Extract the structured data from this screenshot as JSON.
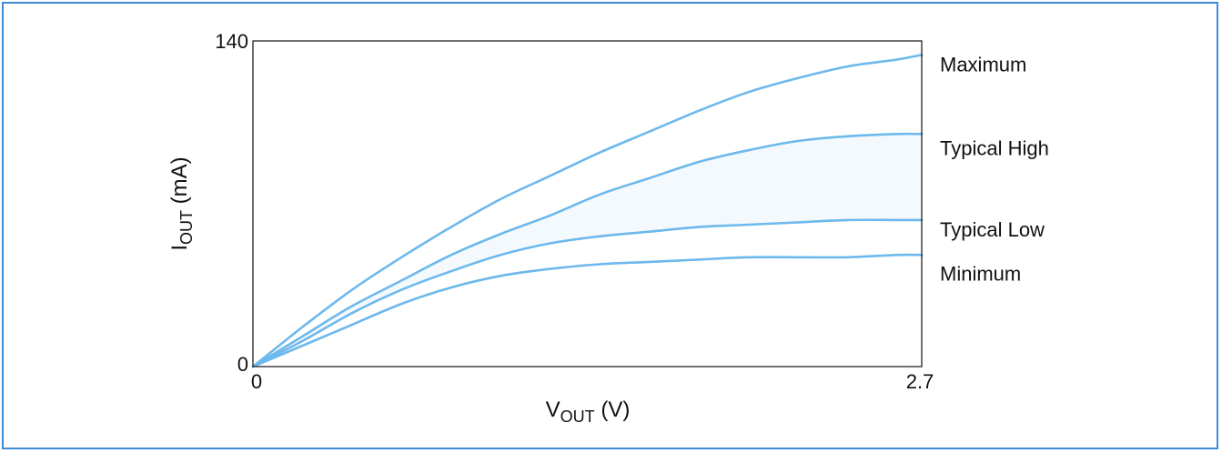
{
  "chart_data": {
    "type": "line",
    "title": "",
    "xlabel": {
      "main": "V",
      "sub": "OUT",
      "unit": " (V)"
    },
    "ylabel": {
      "main": "I",
      "sub": "OUT",
      "unit": " (mA)"
    },
    "xlim": [
      0,
      2.7
    ],
    "ylim": [
      0,
      140
    ],
    "x_ticks": [
      "0",
      "2.7"
    ],
    "y_ticks": [
      "0",
      "140"
    ],
    "grid": false,
    "legend": "right, inline at line ends",
    "line_color": "#6db8ec",
    "fill_color": "#f3f9fd",
    "shaded_band": [
      "Typical Low",
      "Typical High"
    ],
    "series": [
      {
        "name": "Maximum",
        "x": [
          0,
          0.2,
          0.4,
          0.6,
          0.8,
          1.0,
          1.2,
          1.4,
          1.6,
          1.8,
          2.0,
          2.2,
          2.4,
          2.6,
          2.7
        ],
        "y": [
          0,
          17,
          33,
          47,
          60,
          72,
          82,
          92,
          101,
          110,
          118,
          124,
          129,
          132,
          134
        ]
      },
      {
        "name": "Typical High",
        "x": [
          0,
          0.2,
          0.4,
          0.6,
          0.8,
          1.0,
          1.2,
          1.4,
          1.6,
          1.8,
          2.0,
          2.2,
          2.4,
          2.6,
          2.7
        ],
        "y": [
          0,
          13,
          26,
          37,
          48,
          57,
          65,
          74,
          81,
          88,
          93,
          97,
          99,
          100,
          100
        ]
      },
      {
        "name": "Typical Low",
        "x": [
          0,
          0.2,
          0.4,
          0.6,
          0.8,
          1.0,
          1.2,
          1.4,
          1.6,
          1.8,
          2.0,
          2.2,
          2.4,
          2.6,
          2.7
        ],
        "y": [
          0,
          11,
          23,
          33,
          41,
          48,
          53,
          56,
          58,
          60,
          61,
          62,
          63,
          63,
          63
        ]
      },
      {
        "name": "Minimum",
        "x": [
          0,
          0.2,
          0.4,
          0.6,
          0.8,
          1.0,
          1.2,
          1.4,
          1.6,
          1.8,
          2.0,
          2.2,
          2.4,
          2.6,
          2.7
        ],
        "y": [
          0,
          9,
          18,
          27,
          34,
          39,
          42,
          44,
          45,
          46,
          47,
          47,
          47,
          48,
          48
        ]
      }
    ],
    "legend_labels": [
      {
        "series": "Maximum",
        "text": "Maximum",
        "y": 130
      },
      {
        "series": "Typical High",
        "text": "Typical High",
        "y": 94
      },
      {
        "series": "Typical Low",
        "text": "Typical Low",
        "y": 59
      },
      {
        "series": "Minimum",
        "text": "Minimum",
        "y": 40
      }
    ]
  }
}
